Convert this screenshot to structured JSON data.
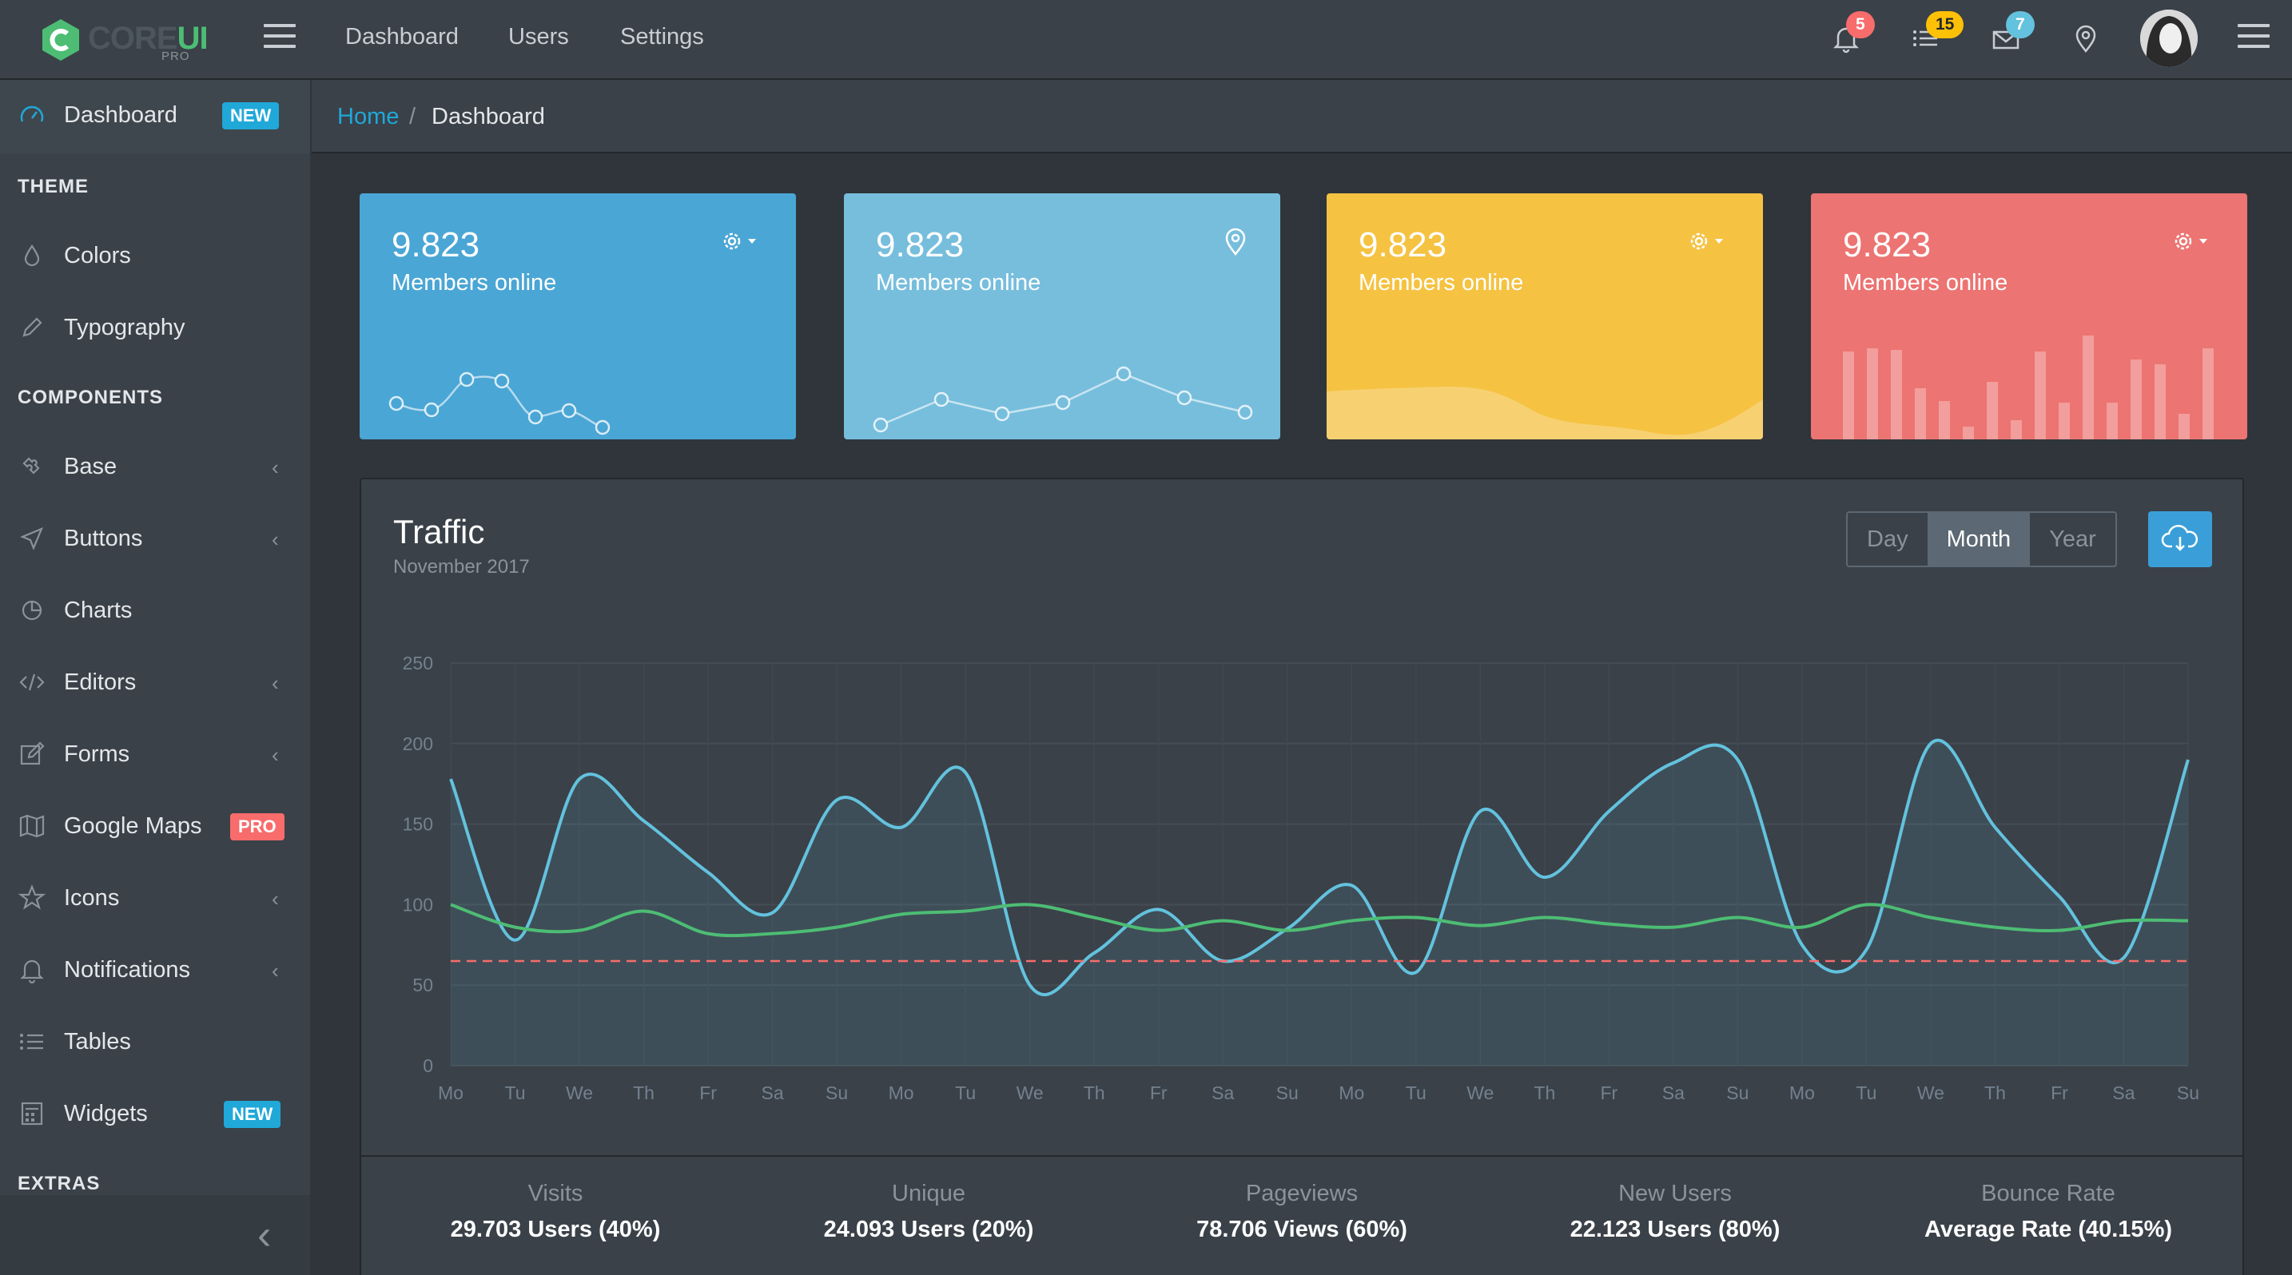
{
  "brand": {
    "core": "CORE",
    "ui": "UI",
    "pro": "PRO"
  },
  "header": {
    "nav": [
      "Dashboard",
      "Users",
      "Settings"
    ],
    "notifications": {
      "bell": "5",
      "tasks": "15",
      "mail": "7"
    },
    "colors": {
      "bell": "#f86c6b",
      "tasks": "#ffc107",
      "mail": "#63c2de"
    }
  },
  "sidebar": {
    "dashboard": {
      "label": "Dashboard",
      "badge": "NEW"
    },
    "section_theme": "THEME",
    "colors": "Colors",
    "typography": "Typography",
    "section_components": "COMPONENTS",
    "items": [
      {
        "label": "Base",
        "icon": "puzzle-icon",
        "chevron": true
      },
      {
        "label": "Buttons",
        "icon": "cursor-icon",
        "chevron": true
      },
      {
        "label": "Charts",
        "icon": "pie-chart-icon",
        "chevron": false
      },
      {
        "label": "Editors",
        "icon": "code-icon",
        "chevron": true
      },
      {
        "label": "Forms",
        "icon": "note-icon",
        "chevron": true
      },
      {
        "label": "Google Maps",
        "icon": "map-icon",
        "badge": "PRO"
      },
      {
        "label": "Icons",
        "icon": "star-icon",
        "chevron": true
      },
      {
        "label": "Notifications",
        "icon": "bell-icon",
        "chevron": true
      },
      {
        "label": "Tables",
        "icon": "list-icon",
        "chevron": false
      },
      {
        "label": "Widgets",
        "icon": "calculator-icon",
        "badge": "NEW"
      }
    ],
    "section_extras": "EXTRAS"
  },
  "breadcrumb": {
    "home": "Home",
    "separator": "/",
    "current": "Dashboard"
  },
  "cards": [
    {
      "value": "9.823",
      "label": "Members online",
      "color": "#4aa6d5",
      "icon": "gear-icon"
    },
    {
      "value": "9.823",
      "label": "Members online",
      "color": "#77bedd",
      "icon": "location-pin-icon"
    },
    {
      "value": "9.823",
      "label": "Members online",
      "color": "#f5c242",
      "icon": "gear-icon"
    },
    {
      "value": "9.823",
      "label": "Members online",
      "color": "#ec7472",
      "icon": "gear-icon"
    }
  ],
  "traffic": {
    "title": "Traffic",
    "subtitle": "November 2017",
    "periods": [
      "Day",
      "Month",
      "Year"
    ],
    "active_period": "Month"
  },
  "chart_data": {
    "type": "line",
    "title": "",
    "ylim": [
      0,
      250
    ],
    "yticks": [
      0,
      50,
      100,
      150,
      200,
      250
    ],
    "categories": [
      "Mo",
      "Tu",
      "We",
      "Th",
      "Fr",
      "Sa",
      "Su",
      "Mo",
      "Tu",
      "We",
      "Th",
      "Fr",
      "Sa",
      "Su",
      "Mo",
      "Tu",
      "We",
      "Th",
      "Fr",
      "Sa",
      "Su",
      "Mo",
      "Tu",
      "We",
      "Th",
      "Fr",
      "Sa",
      "Su"
    ],
    "grid": true,
    "series": [
      {
        "color": "#63c2de",
        "fill": true,
        "values": [
          178,
          78,
          178,
          152,
          120,
          95,
          165,
          148,
          182,
          50,
          70,
          97,
          65,
          85,
          112,
          58,
          158,
          117,
          158,
          188,
          190,
          75,
          72,
          200,
          148,
          105,
          67,
          190
        ]
      },
      {
        "color": "#4dbd74",
        "fill": false,
        "values": [
          100,
          86,
          84,
          96,
          82,
          82,
          86,
          94,
          96,
          100,
          92,
          84,
          90,
          84,
          90,
          92,
          87,
          92,
          88,
          86,
          92,
          86,
          100,
          92,
          86,
          84,
          90,
          90
        ]
      },
      {
        "color": "#f86c6b",
        "fill": false,
        "dashed": true,
        "values": [
          65,
          65,
          65,
          65,
          65,
          65,
          65,
          65,
          65,
          65,
          65,
          65,
          65,
          65,
          65,
          65,
          65,
          65,
          65,
          65,
          65,
          65,
          65,
          65,
          65,
          65,
          65,
          65
        ]
      }
    ]
  },
  "stats": [
    {
      "label": "Visits",
      "value": "29.703 Users (40%)",
      "progress": 40,
      "color": "#4dbd74"
    },
    {
      "label": "Unique",
      "value": "24.093 Users (20%)",
      "progress": 20,
      "color": "#63c2de"
    },
    {
      "label": "Pageviews",
      "value": "78.706 Views (60%)",
      "progress": 60,
      "color": "#ffc107"
    },
    {
      "label": "New Users",
      "value": "22.123 Users (80%)",
      "progress": 80,
      "color": "#f86c6b"
    },
    {
      "label": "Bounce Rate",
      "value": "Average Rate (40.15%)",
      "progress": 40.15,
      "color": "#20a8d8"
    }
  ]
}
